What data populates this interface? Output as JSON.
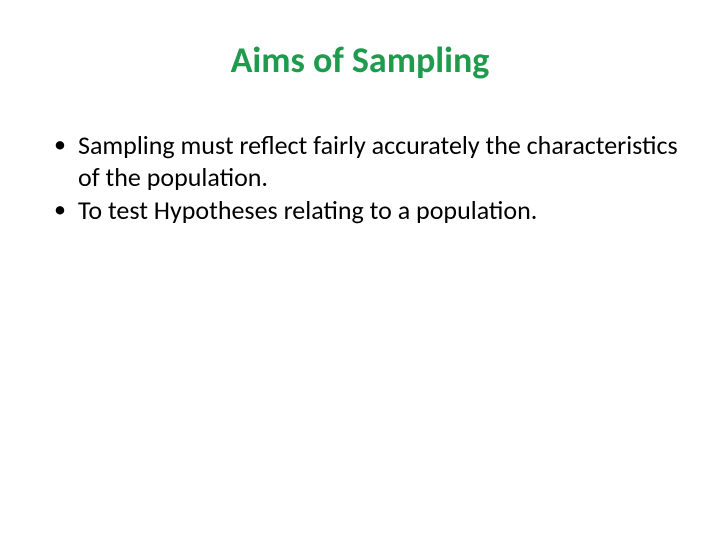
{
  "slide": {
    "title": "Aims of Sampling",
    "title_color": "#1f9b4e",
    "bullets": [
      "Sampling must reflect fairly accurately the characteristics of the population.",
      "To test Hypotheses relating to a population."
    ],
    "bullet_color": "#000000",
    "background_color": "#ffffff",
    "title_fontsize": 36,
    "bullet_fontsize": 26
  }
}
